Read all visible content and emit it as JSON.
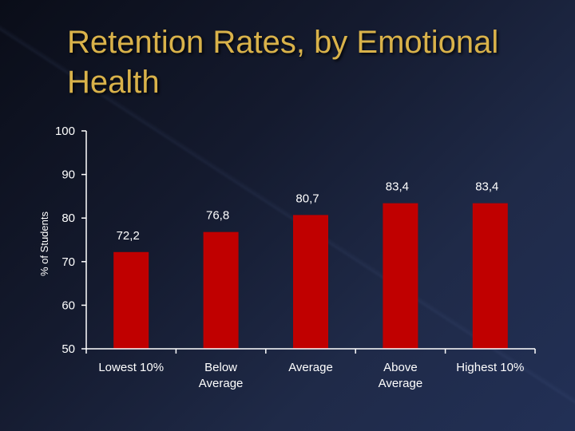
{
  "chart_data": {
    "type": "bar",
    "title": "Retention Rates, by Emotional Health",
    "xlabel": "",
    "ylabel": "% of Students",
    "categories": [
      "Lowest 10%",
      "Below Average",
      "Average",
      "Above Average",
      "Highest 10%"
    ],
    "category_lines": [
      [
        "Lowest 10%"
      ],
      [
        "Below",
        "Average"
      ],
      [
        "Average"
      ],
      [
        "Above",
        "Average"
      ],
      [
        "Highest 10%"
      ]
    ],
    "values": [
      72.2,
      76.8,
      80.7,
      83.4,
      83.4
    ],
    "value_labels": [
      "72,2",
      "76,8",
      "80,7",
      "83,4",
      "83,4"
    ],
    "ylim": [
      50,
      100
    ],
    "yticks": [
      50,
      60,
      70,
      80,
      90,
      100
    ],
    "grid": false,
    "colors": {
      "bar": "#c00000",
      "title": "#d9b24a",
      "axis": "#ffffff"
    }
  }
}
